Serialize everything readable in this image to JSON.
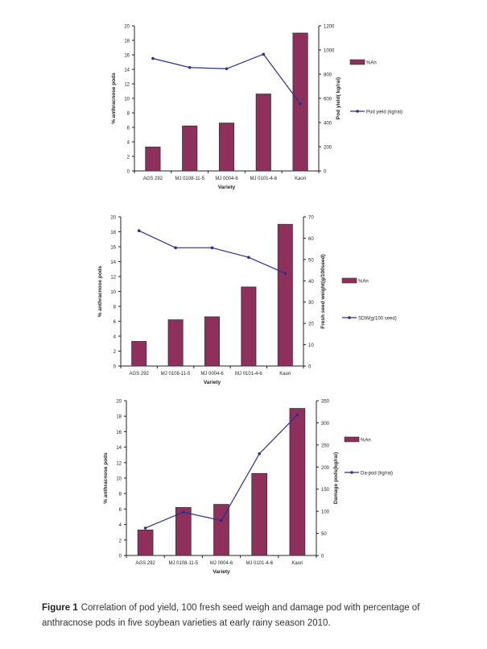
{
  "chart_data": [
    {
      "type": "bar+line",
      "categories": [
        "AGS 292",
        "MJ 0108-11-5",
        "MJ 0004-6",
        "MJ 0101-4-6",
        "Kaori"
      ],
      "xlabel": "Variety",
      "ylabel": "% anthracnose pods",
      "y2label": "Pod yield( kg/rai)",
      "ylim": [
        0,
        20
      ],
      "yticks": [
        0,
        2,
        4,
        6,
        8,
        10,
        12,
        14,
        16,
        18,
        20
      ],
      "y2lim": [
        0,
        1200
      ],
      "y2ticks": [
        0,
        200,
        400,
        600,
        800,
        1000,
        1200
      ],
      "series": [
        {
          "name": "%An",
          "kind": "bar",
          "axis": "left",
          "values": [
            3.3,
            6.2,
            6.6,
            10.6,
            19.0
          ]
        },
        {
          "name": "Pod yield (kg/rai)",
          "kind": "line",
          "axis": "right",
          "values": [
            930,
            855,
            845,
            965,
            555
          ]
        }
      ],
      "legend": "right"
    },
    {
      "type": "bar+line",
      "categories": [
        "AGS 292",
        "MJ 0108-11-5",
        "MJ 0004-6",
        "MJ 0101-4-6",
        "Kaori"
      ],
      "xlabel": "Variety",
      "ylabel": "% anthracnose pods",
      "y2label": "Fresh seed weight(g/100seed)",
      "ylim": [
        0,
        20
      ],
      "yticks": [
        0,
        2,
        4,
        6,
        8,
        10,
        12,
        14,
        16,
        18,
        20
      ],
      "y2lim": [
        0,
        70
      ],
      "y2ticks": [
        0,
        10,
        20,
        30,
        40,
        50,
        60,
        70
      ],
      "series": [
        {
          "name": "%An",
          "kind": "bar",
          "axis": "left",
          "values": [
            3.3,
            6.2,
            6.6,
            10.6,
            19.0
          ]
        },
        {
          "name": "SDW(g/100 seed)",
          "kind": "line",
          "axis": "right",
          "values": [
            63.5,
            55.5,
            55.5,
            51.0,
            43.5
          ]
        }
      ],
      "legend": "right"
    },
    {
      "type": "bar+line",
      "categories": [
        "AGS 292",
        "MJ 0108-11-5",
        "MJ 0004-6",
        "MJ 0101-4-6",
        "Kaori"
      ],
      "xlabel": "Variety",
      "ylabel": "% anthracnose pods",
      "y2label": "Damage pods(kg/rai)",
      "ylim": [
        0,
        20
      ],
      "yticks": [
        0,
        2,
        4,
        6,
        8,
        10,
        12,
        14,
        16,
        18,
        20
      ],
      "y2lim": [
        0,
        350
      ],
      "y2ticks": [
        0,
        50,
        100,
        150,
        200,
        250,
        300,
        350
      ],
      "series": [
        {
          "name": "%An",
          "kind": "bar",
          "axis": "left",
          "values": [
            3.3,
            6.2,
            6.6,
            10.6,
            19.0
          ]
        },
        {
          "name": "Da-pod (kg/rai)",
          "kind": "line",
          "axis": "right",
          "values": [
            62,
            98,
            79,
            230,
            318
          ]
        }
      ],
      "legend": "right"
    }
  ],
  "colors": {
    "bar": "#8e2f5c",
    "line": "#2b2f8f"
  },
  "caption": {
    "label": "Figure 1",
    "text": "Correlation of pod yield, 100 fresh seed weigh and damage pod with percentage of anthracnose pods in five soybean varieties at early rainy season 2010."
  }
}
